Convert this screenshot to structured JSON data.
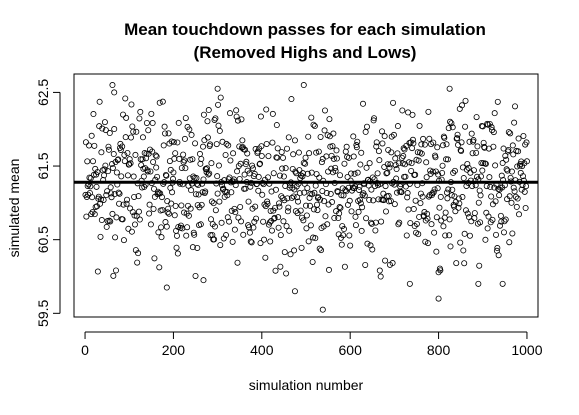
{
  "chart_data": {
    "type": "scatter",
    "title_lines": [
      "Mean touchdown passes for each simulation",
      "(Removed Highs and Lows)"
    ],
    "xlabel": "simulation number",
    "ylabel": "simulated mean",
    "xlim": [
      -25,
      1025
    ],
    "ylim": [
      59.45,
      62.75
    ],
    "x_ticks": [
      0,
      200,
      400,
      600,
      800,
      1000
    ],
    "y_ticks": [
      59.5,
      60.5,
      61.5,
      62.5
    ],
    "x_tick_labels": [
      "0",
      "200",
      "400",
      "600",
      "800",
      "1000"
    ],
    "y_tick_labels": [
      "59.5",
      "60.5",
      "61.5",
      "62.5"
    ],
    "point_style": "open-circle",
    "n_points": 1000,
    "reference_line": {
      "y": 61.28
    },
    "points_seed": 20240517,
    "distribution": {
      "mean": 61.28,
      "sd": 0.5
    },
    "notable_points": [
      {
        "x": 62,
        "y": 62.6
      },
      {
        "x": 66,
        "y": 62.5
      },
      {
        "x": 300,
        "y": 62.55
      },
      {
        "x": 495,
        "y": 62.6
      },
      {
        "x": 825,
        "y": 62.55
      },
      {
        "x": 185,
        "y": 59.85
      },
      {
        "x": 268,
        "y": 59.95
      },
      {
        "x": 475,
        "y": 59.8
      },
      {
        "x": 538,
        "y": 59.55
      },
      {
        "x": 735,
        "y": 59.9
      },
      {
        "x": 800,
        "y": 59.7
      },
      {
        "x": 890,
        "y": 59.9
      },
      {
        "x": 945,
        "y": 59.9
      }
    ]
  }
}
